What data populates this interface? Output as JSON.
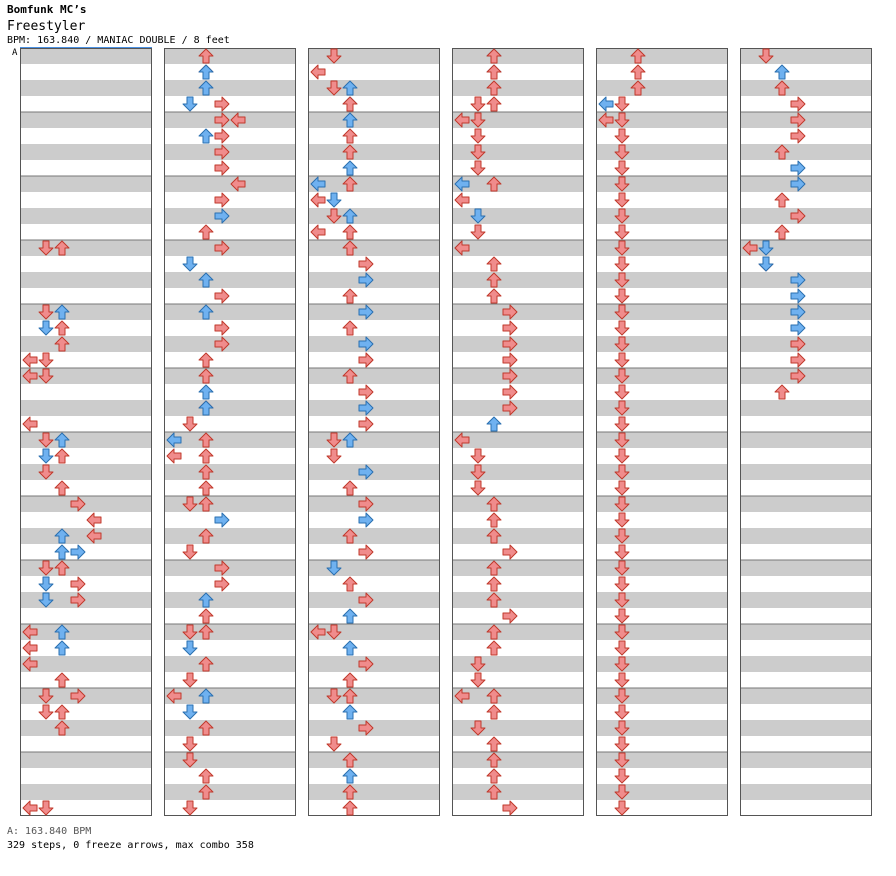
{
  "header": {
    "artist": "Bomfunk MC’s",
    "title": "Freestyler",
    "info": "BPM: 163.840 / MANIAC DOUBLE / 8 feet"
  },
  "bpm_marker": "A",
  "footer": {
    "bpm": "A: 163.840 BPM",
    "stats": "329 steps, 0 freeze arrows, max combo 358"
  },
  "colors": {
    "quarter": "#f08c8c",
    "eighth": "#6fb1f0",
    "stripe": "#cccccc"
  },
  "chart_data": {
    "type": "step-chart",
    "columns": [
      "L1",
      "D1",
      "U1",
      "R1",
      "L2",
      "D2",
      "U2",
      "R2"
    ],
    "note_colors": {
      "q": "quarter",
      "e": "eighth"
    },
    "panels": [
      [
        [
          12,
          1,
          "q"
        ],
        [
          12,
          2,
          "q"
        ],
        [
          16,
          1,
          "q"
        ],
        [
          16,
          2,
          "e"
        ],
        [
          17,
          2,
          "q"
        ],
        [
          17,
          1,
          "e"
        ],
        [
          18,
          2,
          "q"
        ],
        [
          19,
          1,
          "q"
        ],
        [
          19,
          0,
          "q"
        ],
        [
          20,
          0,
          "q"
        ],
        [
          20,
          1,
          "q"
        ],
        [
          23,
          0,
          "q"
        ],
        [
          24,
          1,
          "q"
        ],
        [
          24,
          2,
          "e"
        ],
        [
          25,
          1,
          "e"
        ],
        [
          25,
          2,
          "q"
        ],
        [
          26,
          1,
          "q"
        ],
        [
          27,
          2,
          "q"
        ],
        [
          28,
          3,
          "q"
        ],
        [
          29,
          4,
          "q"
        ],
        [
          30,
          4,
          "q"
        ],
        [
          30,
          2,
          "e"
        ],
        [
          31,
          2,
          "e"
        ],
        [
          31,
          3,
          "e"
        ],
        [
          32,
          1,
          "q"
        ],
        [
          32,
          2,
          "q"
        ],
        [
          33,
          1,
          "e"
        ],
        [
          33,
          3,
          "q"
        ],
        [
          34,
          1,
          "e"
        ],
        [
          34,
          3,
          "q"
        ],
        [
          36,
          0,
          "q"
        ],
        [
          36,
          2,
          "e"
        ],
        [
          37,
          0,
          "q"
        ],
        [
          37,
          2,
          "e"
        ],
        [
          38,
          0,
          "q"
        ],
        [
          39,
          2,
          "q"
        ],
        [
          40,
          1,
          "q"
        ],
        [
          40,
          3,
          "q"
        ],
        [
          41,
          1,
          "q"
        ],
        [
          41,
          2,
          "q"
        ],
        [
          42,
          2,
          "q"
        ],
        [
          47,
          0,
          "q"
        ],
        [
          47,
          1,
          "q"
        ]
      ],
      [
        [
          0,
          2,
          "q"
        ],
        [
          1,
          2,
          "q"
        ],
        [
          1,
          2,
          "e"
        ],
        [
          2,
          2,
          "e"
        ],
        [
          3,
          3,
          "q"
        ],
        [
          3,
          1,
          "e"
        ],
        [
          4,
          3,
          "q"
        ],
        [
          4,
          4,
          "q"
        ],
        [
          5,
          2,
          "e"
        ],
        [
          5,
          3,
          "q"
        ],
        [
          6,
          3,
          "q"
        ],
        [
          7,
          3,
          "q"
        ],
        [
          8,
          4,
          "q"
        ],
        [
          9,
          3,
          "q"
        ],
        [
          10,
          3,
          "e"
        ],
        [
          11,
          2,
          "q"
        ],
        [
          12,
          3,
          "q"
        ],
        [
          13,
          1,
          "e"
        ],
        [
          14,
          2,
          "e"
        ],
        [
          15,
          3,
          "q"
        ],
        [
          16,
          2,
          "e"
        ],
        [
          17,
          3,
          "q"
        ],
        [
          18,
          3,
          "q"
        ],
        [
          19,
          2,
          "q"
        ],
        [
          20,
          2,
          "q"
        ],
        [
          21,
          2,
          "e"
        ],
        [
          22,
          2,
          "q"
        ],
        [
          22,
          2,
          "e"
        ],
        [
          23,
          1,
          "q"
        ],
        [
          24,
          2,
          "q"
        ],
        [
          24,
          0,
          "e"
        ],
        [
          25,
          2,
          "q"
        ],
        [
          25,
          0,
          "q"
        ],
        [
          26,
          2,
          "q"
        ],
        [
          27,
          2,
          "q"
        ],
        [
          28,
          1,
          "q"
        ],
        [
          28,
          2,
          "q"
        ],
        [
          29,
          3,
          "e"
        ],
        [
          30,
          2,
          "q"
        ],
        [
          31,
          1,
          "q"
        ],
        [
          32,
          3,
          "q"
        ],
        [
          33,
          3,
          "q"
        ],
        [
          34,
          2,
          "e"
        ],
        [
          35,
          2,
          "q"
        ],
        [
          36,
          1,
          "q"
        ],
        [
          36,
          2,
          "q"
        ],
        [
          37,
          1,
          "e"
        ],
        [
          38,
          2,
          "q"
        ],
        [
          39,
          1,
          "q"
        ],
        [
          40,
          0,
          "q"
        ],
        [
          40,
          2,
          "e"
        ],
        [
          41,
          1,
          "e"
        ],
        [
          42,
          2,
          "q"
        ],
        [
          43,
          1,
          "q"
        ],
        [
          44,
          1,
          "q"
        ],
        [
          45,
          2,
          "q"
        ],
        [
          46,
          2,
          "q"
        ],
        [
          47,
          1,
          "q"
        ]
      ],
      [
        [
          0,
          1,
          "q"
        ],
        [
          1,
          0,
          "q"
        ],
        [
          2,
          1,
          "q"
        ],
        [
          2,
          2,
          "e"
        ],
        [
          3,
          2,
          "e"
        ],
        [
          3,
          2,
          "q"
        ],
        [
          4,
          2,
          "e"
        ],
        [
          5,
          2,
          "q"
        ],
        [
          6,
          2,
          "q"
        ],
        [
          7,
          2,
          "e"
        ],
        [
          8,
          0,
          "e"
        ],
        [
          8,
          2,
          "q"
        ],
        [
          9,
          1,
          "e"
        ],
        [
          9,
          0,
          "q"
        ],
        [
          10,
          1,
          "q"
        ],
        [
          10,
          2,
          "e"
        ],
        [
          11,
          0,
          "q"
        ],
        [
          11,
          2,
          "q"
        ],
        [
          12,
          2,
          "q"
        ],
        [
          13,
          3,
          "q"
        ],
        [
          14,
          3,
          "e"
        ],
        [
          15,
          2,
          "q"
        ],
        [
          16,
          3,
          "e"
        ],
        [
          17,
          2,
          "q"
        ],
        [
          18,
          3,
          "e"
        ],
        [
          19,
          3,
          "q"
        ],
        [
          19,
          3,
          "q"
        ],
        [
          20,
          2,
          "q"
        ],
        [
          21,
          3,
          "q"
        ],
        [
          22,
          3,
          "e"
        ],
        [
          23,
          3,
          "q"
        ],
        [
          24,
          1,
          "q"
        ],
        [
          24,
          2,
          "e"
        ],
        [
          25,
          1,
          "q"
        ],
        [
          26,
          3,
          "e"
        ],
        [
          27,
          2,
          "q"
        ],
        [
          28,
          3,
          "q"
        ],
        [
          29,
          3,
          "e"
        ],
        [
          30,
          2,
          "q"
        ],
        [
          31,
          3,
          "q"
        ],
        [
          32,
          1,
          "e"
        ],
        [
          33,
          2,
          "q"
        ],
        [
          34,
          3,
          "q"
        ],
        [
          35,
          2,
          "e"
        ],
        [
          36,
          0,
          "q"
        ],
        [
          36,
          1,
          "q"
        ],
        [
          37,
          2,
          "e"
        ],
        [
          38,
          3,
          "q"
        ],
        [
          39,
          2,
          "q"
        ],
        [
          40,
          1,
          "q"
        ],
        [
          40,
          2,
          "q"
        ],
        [
          41,
          2,
          "e"
        ],
        [
          42,
          3,
          "q"
        ],
        [
          43,
          1,
          "q"
        ],
        [
          44,
          2,
          "q"
        ],
        [
          45,
          2,
          "e"
        ],
        [
          46,
          2,
          "q"
        ],
        [
          47,
          2,
          "q"
        ]
      ],
      [
        [
          0,
          2,
          "e"
        ],
        [
          0,
          2,
          "q"
        ],
        [
          1,
          2,
          "e"
        ],
        [
          1,
          2,
          "q"
        ],
        [
          2,
          2,
          "q"
        ],
        [
          3,
          1,
          "q"
        ],
        [
          3,
          2,
          "q"
        ],
        [
          4,
          0,
          "q"
        ],
        [
          4,
          1,
          "q"
        ],
        [
          5,
          1,
          "q"
        ],
        [
          6,
          1,
          "q"
        ],
        [
          7,
          1,
          "q"
        ],
        [
          8,
          0,
          "e"
        ],
        [
          8,
          2,
          "q"
        ],
        [
          9,
          0,
          "q"
        ],
        [
          10,
          1,
          "e"
        ],
        [
          11,
          1,
          "q"
        ],
        [
          12,
          0,
          "e"
        ],
        [
          12,
          0,
          "q"
        ],
        [
          13,
          2,
          "q"
        ],
        [
          14,
          2,
          "q"
        ],
        [
          15,
          2,
          "q"
        ],
        [
          16,
          3,
          "q"
        ],
        [
          17,
          3,
          "q"
        ],
        [
          18,
          3,
          "q"
        ],
        [
          19,
          3,
          "q"
        ],
        [
          20,
          3,
          "q"
        ],
        [
          20,
          3,
          "q"
        ],
        [
          21,
          3,
          "q"
        ],
        [
          22,
          3,
          "q"
        ],
        [
          23,
          2,
          "e"
        ],
        [
          24,
          0,
          "q"
        ],
        [
          25,
          1,
          "q"
        ],
        [
          26,
          1,
          "q"
        ],
        [
          27,
          1,
          "q"
        ],
        [
          28,
          2,
          "q"
        ],
        [
          29,
          2,
          "q"
        ],
        [
          30,
          2,
          "q"
        ],
        [
          31,
          3,
          "q"
        ],
        [
          32,
          2,
          "q"
        ],
        [
          33,
          2,
          "q"
        ],
        [
          34,
          2,
          "q"
        ],
        [
          35,
          3,
          "q"
        ],
        [
          36,
          2,
          "q"
        ],
        [
          37,
          2,
          "q"
        ],
        [
          38,
          1,
          "q"
        ],
        [
          39,
          1,
          "q"
        ],
        [
          40,
          0,
          "q"
        ],
        [
          40,
          2,
          "q"
        ],
        [
          41,
          2,
          "q"
        ],
        [
          42,
          1,
          "q"
        ],
        [
          43,
          2,
          "q"
        ],
        [
          44,
          2,
          "q"
        ],
        [
          45,
          2,
          "q"
        ],
        [
          46,
          2,
          "q"
        ],
        [
          47,
          3,
          "q"
        ]
      ],
      [
        [
          0,
          2,
          "q"
        ],
        [
          1,
          2,
          "q"
        ],
        [
          2,
          2,
          "q"
        ],
        [
          3,
          1,
          "q"
        ],
        [
          3,
          0,
          "e"
        ],
        [
          4,
          0,
          "q"
        ],
        [
          4,
          1,
          "q"
        ],
        [
          5,
          1,
          "q"
        ],
        [
          6,
          1,
          "q"
        ],
        [
          7,
          1,
          "q"
        ],
        [
          8,
          1,
          "q"
        ],
        [
          9,
          1,
          "q"
        ],
        [
          10,
          1,
          "q"
        ],
        [
          11,
          1,
          "q"
        ],
        [
          12,
          1,
          "q"
        ],
        [
          13,
          1,
          "q"
        ],
        [
          14,
          1,
          "q"
        ],
        [
          15,
          1,
          "q"
        ],
        [
          16,
          1,
          "q"
        ],
        [
          17,
          1,
          "q"
        ],
        [
          18,
          1,
          "q"
        ],
        [
          19,
          1,
          "q"
        ],
        [
          20,
          1,
          "q"
        ],
        [
          21,
          1,
          "q"
        ],
        [
          22,
          1,
          "q"
        ],
        [
          23,
          1,
          "q"
        ],
        [
          24,
          1,
          "q"
        ],
        [
          25,
          1,
          "q"
        ],
        [
          26,
          1,
          "q"
        ],
        [
          27,
          1,
          "q"
        ],
        [
          28,
          1,
          "q"
        ],
        [
          29,
          1,
          "q"
        ],
        [
          30,
          1,
          "q"
        ],
        [
          31,
          1,
          "q"
        ],
        [
          32,
          1,
          "q"
        ],
        [
          33,
          1,
          "q"
        ],
        [
          34,
          1,
          "q"
        ],
        [
          35,
          1,
          "q"
        ],
        [
          36,
          1,
          "q"
        ],
        [
          37,
          1,
          "q"
        ],
        [
          38,
          1,
          "q"
        ],
        [
          39,
          1,
          "q"
        ],
        [
          40,
          1,
          "q"
        ],
        [
          41,
          1,
          "q"
        ],
        [
          42,
          1,
          "q"
        ],
        [
          43,
          1,
          "q"
        ],
        [
          44,
          1,
          "q"
        ],
        [
          45,
          1,
          "q"
        ],
        [
          46,
          1,
          "q"
        ],
        [
          47,
          1,
          "q"
        ]
      ],
      [
        [
          0,
          1,
          "q"
        ],
        [
          1,
          2,
          "e"
        ],
        [
          2,
          2,
          "q"
        ],
        [
          3,
          3,
          "q"
        ],
        [
          4,
          3,
          "q"
        ],
        [
          5,
          3,
          "q"
        ],
        [
          6,
          2,
          "q"
        ],
        [
          7,
          3,
          "e"
        ],
        [
          8,
          3,
          "e"
        ],
        [
          9,
          2,
          "q"
        ],
        [
          10,
          3,
          "q"
        ],
        [
          11,
          2,
          "q"
        ],
        [
          12,
          0,
          "q"
        ],
        [
          12,
          1,
          "e"
        ],
        [
          13,
          1,
          "q"
        ],
        [
          13,
          1,
          "e"
        ],
        [
          14,
          3,
          "e"
        ],
        [
          15,
          3,
          "e"
        ],
        [
          16,
          3,
          "e"
        ],
        [
          17,
          3,
          "e"
        ],
        [
          18,
          3,
          "q"
        ],
        [
          19,
          3,
          "q"
        ],
        [
          20,
          3,
          "q"
        ],
        [
          21,
          2,
          "q"
        ]
      ]
    ]
  }
}
